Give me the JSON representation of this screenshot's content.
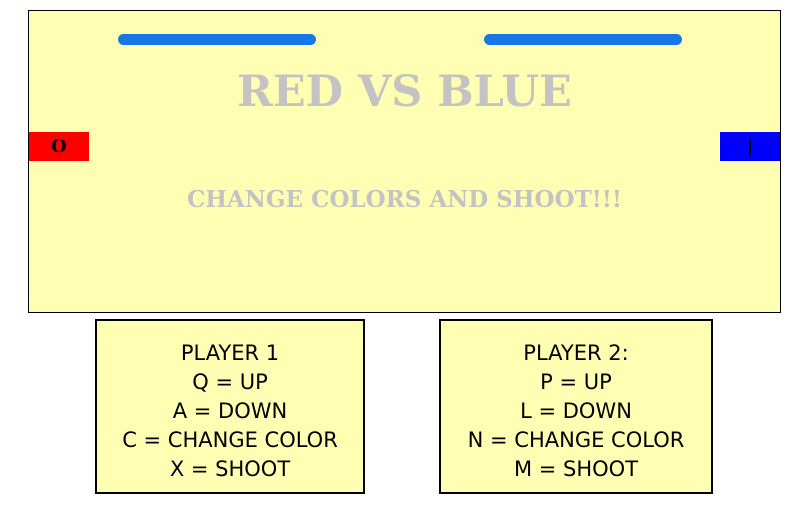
{
  "game": {
    "title": "RED VS BLUE",
    "subtitle": "CHANGE COLORS AND SHOOT!!!",
    "player1": {
      "symbol": "O",
      "color": "#ff0000",
      "health": 1.0,
      "health_color": "#1976e8"
    },
    "player2": {
      "symbol": "|",
      "color": "#0000ff",
      "health": 1.0,
      "health_color": "#1976e8"
    },
    "arena_color": "#ffffb3",
    "title_color": "#c3c3c3"
  },
  "controls": {
    "player1": {
      "heading": "PLAYER 1",
      "up": "Q = UP",
      "down": "A = DOWN",
      "change_color": "C = CHANGE COLOR",
      "shoot": "X = SHOOT"
    },
    "player2": {
      "heading": "PLAYER 2:",
      "up": "P = UP",
      "down": "L = DOWN",
      "change_color": "N = CHANGE COLOR",
      "shoot": "M = SHOOT"
    }
  }
}
